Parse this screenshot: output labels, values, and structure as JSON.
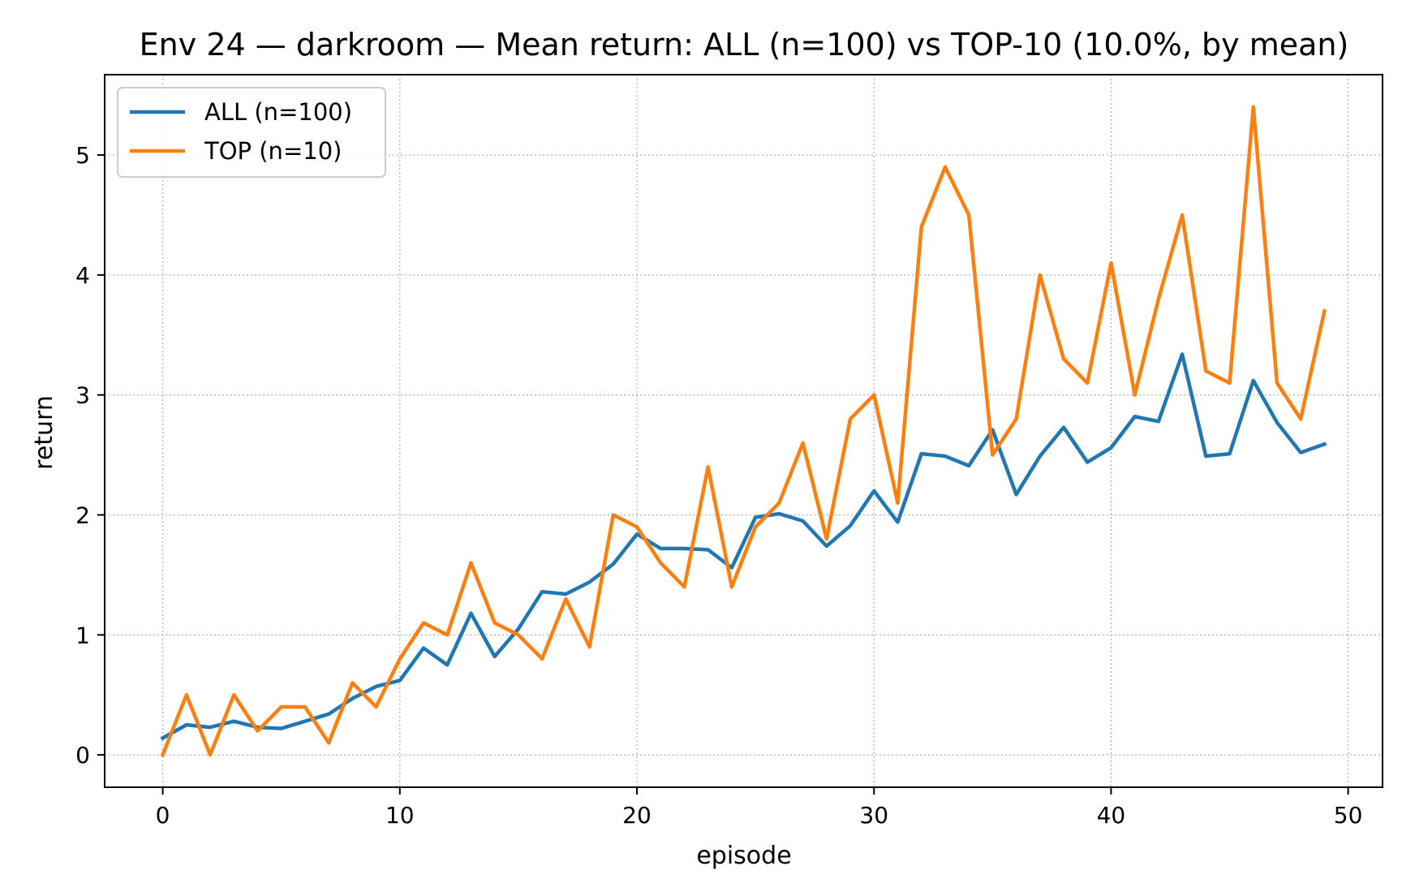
{
  "chart_data": {
    "type": "line",
    "title": "Env 24 — darkroom — Mean return: ALL (n=100) vs TOP-10 (10.0%, by mean)",
    "xlabel": "episode",
    "ylabel": "return",
    "xlim": [
      -2.45,
      51.45
    ],
    "ylim": [
      -0.27,
      5.67
    ],
    "xticks": [
      0,
      10,
      20,
      30,
      40,
      50
    ],
    "yticks": [
      0,
      1,
      2,
      3,
      4,
      5
    ],
    "grid": true,
    "legend": "upper left",
    "x": [
      0,
      1,
      2,
      3,
      4,
      5,
      6,
      7,
      8,
      9,
      10,
      11,
      12,
      13,
      14,
      15,
      16,
      17,
      18,
      19,
      20,
      21,
      22,
      23,
      24,
      25,
      26,
      27,
      28,
      29,
      30,
      31,
      32,
      33,
      34,
      35,
      36,
      37,
      38,
      39,
      40,
      41,
      42,
      43,
      44,
      45,
      46,
      47,
      48,
      49
    ],
    "series": [
      {
        "name": "ALL (n=100)",
        "color": "#1f77b4",
        "values": [
          0.14,
          0.25,
          0.23,
          0.28,
          0.23,
          0.22,
          0.28,
          0.34,
          0.47,
          0.57,
          0.62,
          0.89,
          0.75,
          1.18,
          0.82,
          1.05,
          1.36,
          1.34,
          1.44,
          1.59,
          1.84,
          1.72,
          1.72,
          1.71,
          1.56,
          1.98,
          2.01,
          1.95,
          1.74,
          1.91,
          2.2,
          1.94,
          2.51,
          2.49,
          2.41,
          2.71,
          2.17,
          2.49,
          2.73,
          2.44,
          2.56,
          2.82,
          2.78,
          3.34,
          2.49,
          2.51,
          3.12,
          2.77,
          2.52,
          2.59
        ]
      },
      {
        "name": "TOP (n=10)",
        "color": "#ff7f0e",
        "values": [
          0.0,
          0.5,
          0.0,
          0.5,
          0.2,
          0.4,
          0.4,
          0.1,
          0.6,
          0.4,
          0.8,
          1.1,
          1.0,
          1.6,
          1.1,
          1.0,
          0.8,
          1.3,
          0.9,
          2.0,
          1.9,
          1.6,
          1.4,
          2.4,
          1.4,
          1.9,
          2.1,
          2.6,
          1.8,
          2.8,
          3.0,
          2.1,
          4.4,
          4.9,
          4.5,
          2.5,
          2.8,
          4.0,
          3.3,
          3.1,
          4.1,
          3.0,
          3.8,
          4.5,
          3.2,
          3.1,
          5.4,
          3.1,
          2.8,
          3.7
        ]
      }
    ]
  }
}
